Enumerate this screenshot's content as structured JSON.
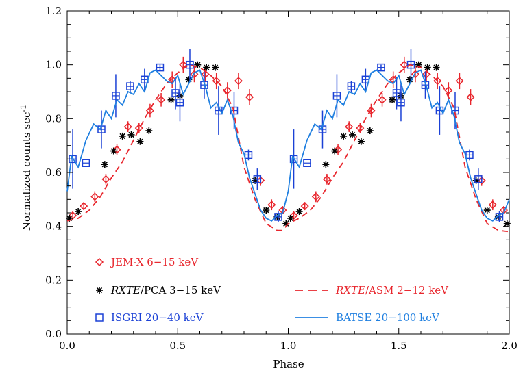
{
  "chart_data": {
    "type": "scatter",
    "xlabel": "Phase",
    "ylabel": "Normalized counts sec",
    "ylabel_superscript": "-1",
    "xlim": [
      0.0,
      2.0
    ],
    "ylim": [
      0.0,
      1.2
    ],
    "x_ticks": [
      {
        "value": 0.0,
        "label": "0.0"
      },
      {
        "value": 0.5,
        "label": "0.5"
      },
      {
        "value": 1.0,
        "label": "1.0"
      },
      {
        "value": 1.5,
        "label": "1.5"
      },
      {
        "value": 2.0,
        "label": "2.0"
      }
    ],
    "y_ticks": [
      {
        "value": 0.0,
        "label": "0.0"
      },
      {
        "value": 0.2,
        "label": "0.2"
      },
      {
        "value": 0.4,
        "label": "0.4"
      },
      {
        "value": 0.6,
        "label": "0.6"
      },
      {
        "value": 0.8,
        "label": "0.8"
      },
      {
        "value": 1.0,
        "label": "1.0"
      },
      {
        "value": 1.2,
        "label": "1.2"
      }
    ],
    "grid": false,
    "series": [
      {
        "name": "JEM-X 6-15 keV",
        "legend_parts": [
          {
            "text": "JEM-X 6−15 keV",
            "italic": false
          }
        ],
        "marker": "diamond",
        "color": "#e8262d",
        "x": [
          0.025,
          0.075,
          0.125,
          0.175,
          0.225,
          0.275,
          0.325,
          0.375,
          0.425,
          0.475,
          0.525,
          0.575,
          0.625,
          0.675,
          0.725,
          0.775,
          0.825,
          0.875,
          0.925,
          0.975,
          1.025,
          1.075,
          1.125,
          1.175,
          1.225,
          1.275,
          1.325,
          1.375,
          1.425,
          1.475,
          1.525,
          1.575,
          1.625,
          1.675,
          1.725,
          1.775,
          1.825,
          1.875,
          1.925,
          1.975
        ],
        "y": [
          0.44,
          0.475,
          0.51,
          0.575,
          0.685,
          0.77,
          0.765,
          0.83,
          0.87,
          0.945,
          1.0,
          0.965,
          0.965,
          0.94,
          0.905,
          0.94,
          0.88,
          0.57,
          0.48,
          0.46,
          0.44,
          0.475,
          0.51,
          0.575,
          0.685,
          0.77,
          0.765,
          0.83,
          0.87,
          0.945,
          1.0,
          0.965,
          0.965,
          0.94,
          0.905,
          0.94,
          0.88,
          0.57,
          0.48,
          0.46
        ],
        "yerr": [
          0.015,
          0.015,
          0.02,
          0.02,
          0.02,
          0.02,
          0.02,
          0.025,
          0.025,
          0.03,
          0.03,
          0.03,
          0.03,
          0.03,
          0.03,
          0.03,
          0.03,
          0.02,
          0.02,
          0.015,
          0.015,
          0.015,
          0.02,
          0.02,
          0.02,
          0.02,
          0.02,
          0.025,
          0.025,
          0.03,
          0.03,
          0.03,
          0.03,
          0.03,
          0.03,
          0.03,
          0.03,
          0.02,
          0.02,
          0.015
        ]
      },
      {
        "name": "RXTE/PCA 3-15 keV",
        "legend_parts": [
          {
            "text": "RXTE",
            "italic": true
          },
          {
            "text": "/PCA 3−15 keV",
            "italic": false
          }
        ],
        "marker": "asterisk",
        "color": "#000000",
        "x": [
          0.01,
          0.05,
          0.17,
          0.21,
          0.25,
          0.29,
          0.33,
          0.37,
          0.47,
          0.51,
          0.55,
          0.59,
          0.63,
          0.67,
          0.85,
          0.9,
          0.95,
          0.99,
          1.01,
          1.05,
          1.17,
          1.21,
          1.25,
          1.29,
          1.33,
          1.37,
          1.47,
          1.51,
          1.55,
          1.59,
          1.63,
          1.67,
          1.85,
          1.9,
          1.95,
          1.99
        ],
        "y": [
          0.43,
          0.455,
          0.63,
          0.68,
          0.735,
          0.74,
          0.715,
          0.755,
          0.87,
          0.885,
          0.945,
          1.0,
          0.99,
          0.99,
          0.57,
          0.46,
          0.435,
          0.41,
          0.43,
          0.455,
          0.63,
          0.68,
          0.735,
          0.74,
          0.715,
          0.755,
          0.87,
          0.885,
          0.945,
          1.0,
          0.99,
          0.99,
          0.57,
          0.46,
          0.435,
          0.41
        ],
        "yerr": []
      },
      {
        "name": "ISGRI 20-40 keV",
        "legend_parts": [
          {
            "text": "ISGRI 20−40 keV",
            "italic": false
          }
        ],
        "marker": "square",
        "color": "#1b41d6",
        "x": [
          0.025,
          0.085,
          0.155,
          0.22,
          0.285,
          0.35,
          0.42,
          0.49,
          0.51,
          0.555,
          0.62,
          0.685,
          0.755,
          0.82,
          0.86,
          0.955,
          1.025,
          1.085,
          1.155,
          1.22,
          1.285,
          1.35,
          1.42,
          1.49,
          1.51,
          1.555,
          1.62,
          1.685,
          1.755,
          1.82,
          1.86,
          1.955
        ],
        "y": [
          0.65,
          0.635,
          0.76,
          0.885,
          0.92,
          0.945,
          0.99,
          0.895,
          0.86,
          1.0,
          0.925,
          0.83,
          0.83,
          0.665,
          0.575,
          0.435,
          0.65,
          0.635,
          0.76,
          0.885,
          0.92,
          0.945,
          0.99,
          0.895,
          0.86,
          1.0,
          0.925,
          0.83,
          0.83,
          0.665,
          0.575,
          0.435
        ],
        "yerr": [
          0.11,
          0.0,
          0.07,
          0.08,
          0.02,
          0.04,
          0.01,
          0.06,
          0.07,
          0.06,
          0.05,
          0.09,
          0.07,
          0.02,
          0.04,
          0.02,
          0.11,
          0.0,
          0.07,
          0.08,
          0.02,
          0.04,
          0.01,
          0.06,
          0.07,
          0.06,
          0.05,
          0.09,
          0.07,
          0.02,
          0.04,
          0.02
        ]
      },
      {
        "name": "RXTE/ASM 2-12 keV",
        "legend_parts": [
          {
            "text": "RXTE",
            "italic": true
          },
          {
            "text": "/ASM 2−12 keV",
            "italic": false
          }
        ],
        "marker": "dashed-line",
        "color": "#e8262d",
        "x": [
          0.0,
          0.05,
          0.1,
          0.15,
          0.2,
          0.25,
          0.3,
          0.35,
          0.4,
          0.45,
          0.5,
          0.55,
          0.6,
          0.65,
          0.7,
          0.75,
          0.8,
          0.85,
          0.9,
          0.95,
          0.975,
          1.0,
          1.05,
          1.1,
          1.15,
          1.2,
          1.25,
          1.3,
          1.35,
          1.4,
          1.45,
          1.5,
          1.55,
          1.6,
          1.65,
          1.7,
          1.75,
          1.8,
          1.85,
          1.9,
          1.95,
          2.0
        ],
        "y": [
          0.42,
          0.43,
          0.46,
          0.51,
          0.58,
          0.64,
          0.72,
          0.8,
          0.87,
          0.93,
          0.97,
          1.0,
          0.99,
          0.96,
          0.92,
          0.84,
          0.62,
          0.5,
          0.41,
          0.385,
          0.385,
          0.41,
          0.43,
          0.46,
          0.51,
          0.58,
          0.64,
          0.72,
          0.8,
          0.87,
          0.93,
          0.97,
          1.0,
          0.99,
          0.96,
          0.92,
          0.84,
          0.62,
          0.5,
          0.41,
          0.385,
          0.38
        ],
        "yerr": []
      },
      {
        "name": "BATSE 20-100 keV",
        "legend_parts": [
          {
            "text": "BATSE 20−100 keV",
            "italic": false
          }
        ],
        "marker": "solid-line",
        "color": "#1f7fe0",
        "x": [
          0.0,
          0.02,
          0.05,
          0.085,
          0.12,
          0.15,
          0.175,
          0.2,
          0.225,
          0.25,
          0.275,
          0.3,
          0.325,
          0.35,
          0.375,
          0.4,
          0.425,
          0.45,
          0.475,
          0.5,
          0.525,
          0.55,
          0.575,
          0.6,
          0.625,
          0.65,
          0.675,
          0.7,
          0.725,
          0.75,
          0.775,
          0.8,
          0.825,
          0.85,
          0.875,
          0.9,
          0.925,
          0.95,
          0.975,
          1.0,
          1.02,
          1.05,
          1.085,
          1.12,
          1.15,
          1.175,
          1.2,
          1.225,
          1.25,
          1.275,
          1.3,
          1.325,
          1.35,
          1.375,
          1.4,
          1.425,
          1.45,
          1.475,
          1.5,
          1.525,
          1.55,
          1.575,
          1.6,
          1.625,
          1.65,
          1.675,
          1.7,
          1.725,
          1.75,
          1.775,
          1.8,
          1.825,
          1.85,
          1.875,
          1.9,
          1.925,
          1.95,
          1.975,
          2.0
        ],
        "y": [
          0.53,
          0.66,
          0.62,
          0.72,
          0.78,
          0.76,
          0.83,
          0.8,
          0.87,
          0.85,
          0.9,
          0.89,
          0.93,
          0.9,
          0.97,
          0.98,
          0.96,
          0.94,
          0.93,
          0.96,
          0.89,
          0.93,
          0.97,
          0.98,
          0.92,
          0.84,
          0.86,
          0.82,
          0.87,
          0.81,
          0.71,
          0.67,
          0.58,
          0.52,
          0.46,
          0.43,
          0.42,
          0.44,
          0.45,
          0.53,
          0.66,
          0.62,
          0.72,
          0.78,
          0.76,
          0.83,
          0.8,
          0.87,
          0.85,
          0.9,
          0.89,
          0.93,
          0.9,
          0.97,
          0.98,
          0.96,
          0.94,
          0.93,
          0.96,
          0.89,
          0.93,
          0.97,
          0.98,
          0.92,
          0.84,
          0.86,
          0.82,
          0.87,
          0.81,
          0.71,
          0.67,
          0.58,
          0.52,
          0.46,
          0.43,
          0.42,
          0.44,
          0.45,
          0.5
        ],
        "yerr": []
      }
    ],
    "legend_left": [
      "JEM-X 6-15 keV",
      "RXTE/PCA 3-15 keV",
      "ISGRI 20-40 keV"
    ],
    "legend_right": [
      "RXTE/ASM 2-12 keV",
      "BATSE 20-100 keV"
    ],
    "legend_placement": "bottom-inside"
  }
}
